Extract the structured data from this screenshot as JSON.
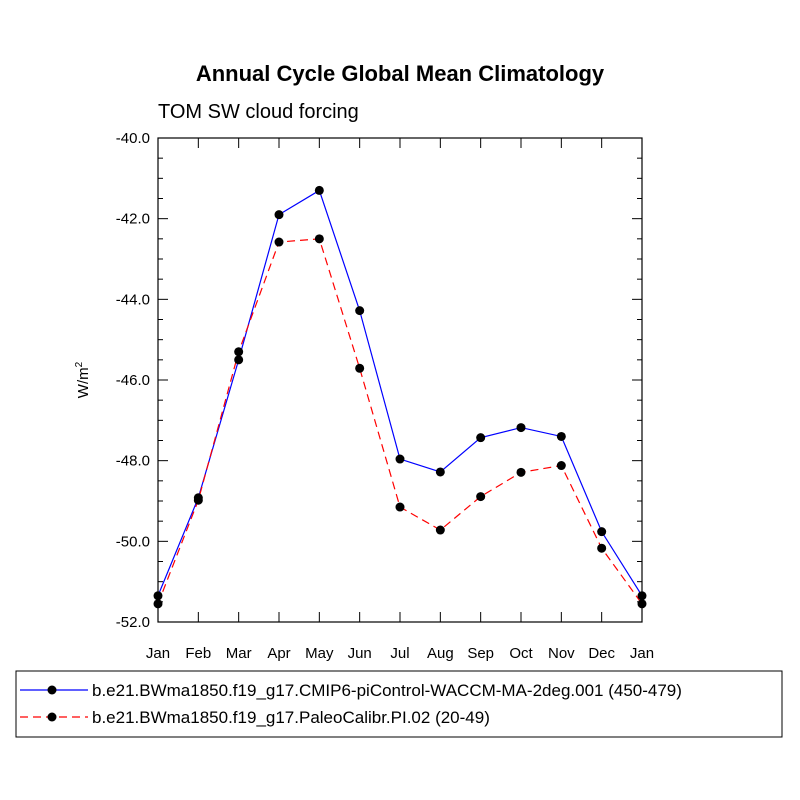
{
  "chart_data": {
    "type": "line",
    "title": "Annual Cycle Global Mean Climatology",
    "subtitle": "TOM SW cloud forcing",
    "ylabel": "W/m",
    "ylabel_superscript": "2",
    "xlabel": "",
    "ylim": [
      -52.0,
      -40.0
    ],
    "yticks": [
      "-52.0",
      "-50.0",
      "-48.0",
      "-46.0",
      "-44.0",
      "-42.0",
      "-40.0"
    ],
    "ytick_values": [
      -52,
      -50,
      -48,
      -46,
      -44,
      -42,
      -40
    ],
    "categories": [
      "Jan",
      "Feb",
      "Mar",
      "Apr",
      "May",
      "Jun",
      "Jul",
      "Aug",
      "Sep",
      "Oct",
      "Nov",
      "Dec",
      "Jan"
    ],
    "series": [
      {
        "name": "b.e21.BWma1850.f19_g17.CMIP6-piControl-WACCM-MA-2deg.001 (450-479)",
        "color": "#0000ff",
        "dash": "solid",
        "values": [
          -51.35,
          -48.92,
          -45.5,
          -41.9,
          -41.3,
          -44.28,
          -47.96,
          -48.28,
          -47.43,
          -47.18,
          -47.4,
          -49.76,
          -51.35
        ]
      },
      {
        "name": "b.e21.BWma1850.f19_g17.PaleoCalibr.PI.02 (20-49)",
        "color": "#ff0000",
        "dash": "dashed",
        "values": [
          -51.55,
          -48.98,
          -45.3,
          -42.58,
          -42.5,
          -45.71,
          -49.15,
          -49.72,
          -48.89,
          -48.29,
          -48.12,
          -50.17,
          -51.55
        ]
      }
    ],
    "legend_position": "bottom",
    "grid": false
  }
}
